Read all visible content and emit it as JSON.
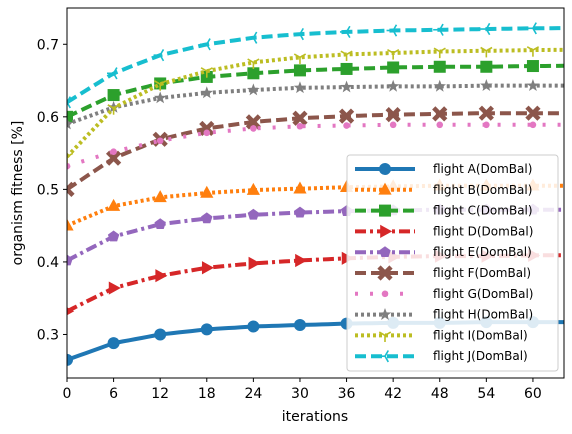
{
  "chart_data": {
    "type": "line",
    "xlabel": "iterations",
    "ylabel": "organism fitness [%]",
    "xlim": [
      0,
      64
    ],
    "ylim": [
      0.24,
      0.75
    ],
    "xticks": [
      0,
      6,
      12,
      18,
      24,
      30,
      36,
      42,
      48,
      54,
      60
    ],
    "yticks": [
      0.3,
      0.4,
      0.5,
      0.6,
      0.7
    ],
    "grid": false,
    "legend_position": "lower-right",
    "marker_x": [
      0,
      6,
      12,
      18,
      24,
      30,
      36,
      42,
      48,
      54,
      60
    ],
    "series": [
      {
        "name": "flight A(DomBal)",
        "color": "#1f77b4",
        "dash": "solid",
        "marker": "circle",
        "values": [
          0.265,
          0.288,
          0.3,
          0.307,
          0.311,
          0.313,
          0.315,
          0.316,
          0.316,
          0.317,
          0.317
        ]
      },
      {
        "name": "flight B(DomBal)",
        "color": "#ff7f0e",
        "dash": "dotted",
        "marker": "triangle-up",
        "values": [
          0.45,
          0.477,
          0.489,
          0.495,
          0.499,
          0.501,
          0.503,
          0.504,
          0.505,
          0.505,
          0.505
        ]
      },
      {
        "name": "flight C(DomBal)",
        "color": "#2ca02c",
        "dash": "dashed",
        "marker": "square",
        "values": [
          0.6,
          0.63,
          0.646,
          0.655,
          0.66,
          0.664,
          0.666,
          0.668,
          0.669,
          0.669,
          0.67
        ]
      },
      {
        "name": "flight D(DomBal)",
        "color": "#d62728",
        "dash": "dashdot",
        "marker": "triangle-right",
        "values": [
          0.332,
          0.364,
          0.381,
          0.392,
          0.398,
          0.402,
          0.405,
          0.407,
          0.408,
          0.408,
          0.409
        ]
      },
      {
        "name": "flight E(DomBal)",
        "color": "#9467bd",
        "dash": "dashdot",
        "marker": "pentagon",
        "values": [
          0.402,
          0.435,
          0.452,
          0.46,
          0.465,
          0.468,
          0.47,
          0.471,
          0.472,
          0.472,
          0.472
        ]
      },
      {
        "name": "flight F(DomBal)",
        "color": "#8c564b",
        "dash": "dashed",
        "marker": "x-filled",
        "values": [
          0.5,
          0.543,
          0.569,
          0.584,
          0.593,
          0.598,
          0.601,
          0.603,
          0.604,
          0.605,
          0.605
        ]
      },
      {
        "name": "flight G(DomBal)",
        "color": "#e377c2",
        "dash": "sparse-dot",
        "marker": "point",
        "values": [
          0.532,
          0.552,
          0.567,
          0.578,
          0.584,
          0.587,
          0.588,
          0.589,
          0.589,
          0.589,
          0.589
        ]
      },
      {
        "name": "flight H(DomBal)",
        "color": "#7f7f7f",
        "dash": "dotted",
        "marker": "star",
        "values": [
          0.59,
          0.613,
          0.626,
          0.633,
          0.637,
          0.64,
          0.641,
          0.642,
          0.642,
          0.643,
          0.643
        ]
      },
      {
        "name": "flight I(DomBal)",
        "color": "#bcbd22",
        "dash": "dotted",
        "marker": "tri-down",
        "values": [
          0.545,
          0.612,
          0.645,
          0.663,
          0.675,
          0.682,
          0.686,
          0.688,
          0.69,
          0.691,
          0.692
        ]
      },
      {
        "name": "flight J(DomBal)",
        "color": "#17becf",
        "dash": "dashed",
        "marker": "tri-left",
        "values": [
          0.62,
          0.66,
          0.685,
          0.7,
          0.709,
          0.714,
          0.717,
          0.719,
          0.72,
          0.721,
          0.722
        ]
      }
    ]
  }
}
